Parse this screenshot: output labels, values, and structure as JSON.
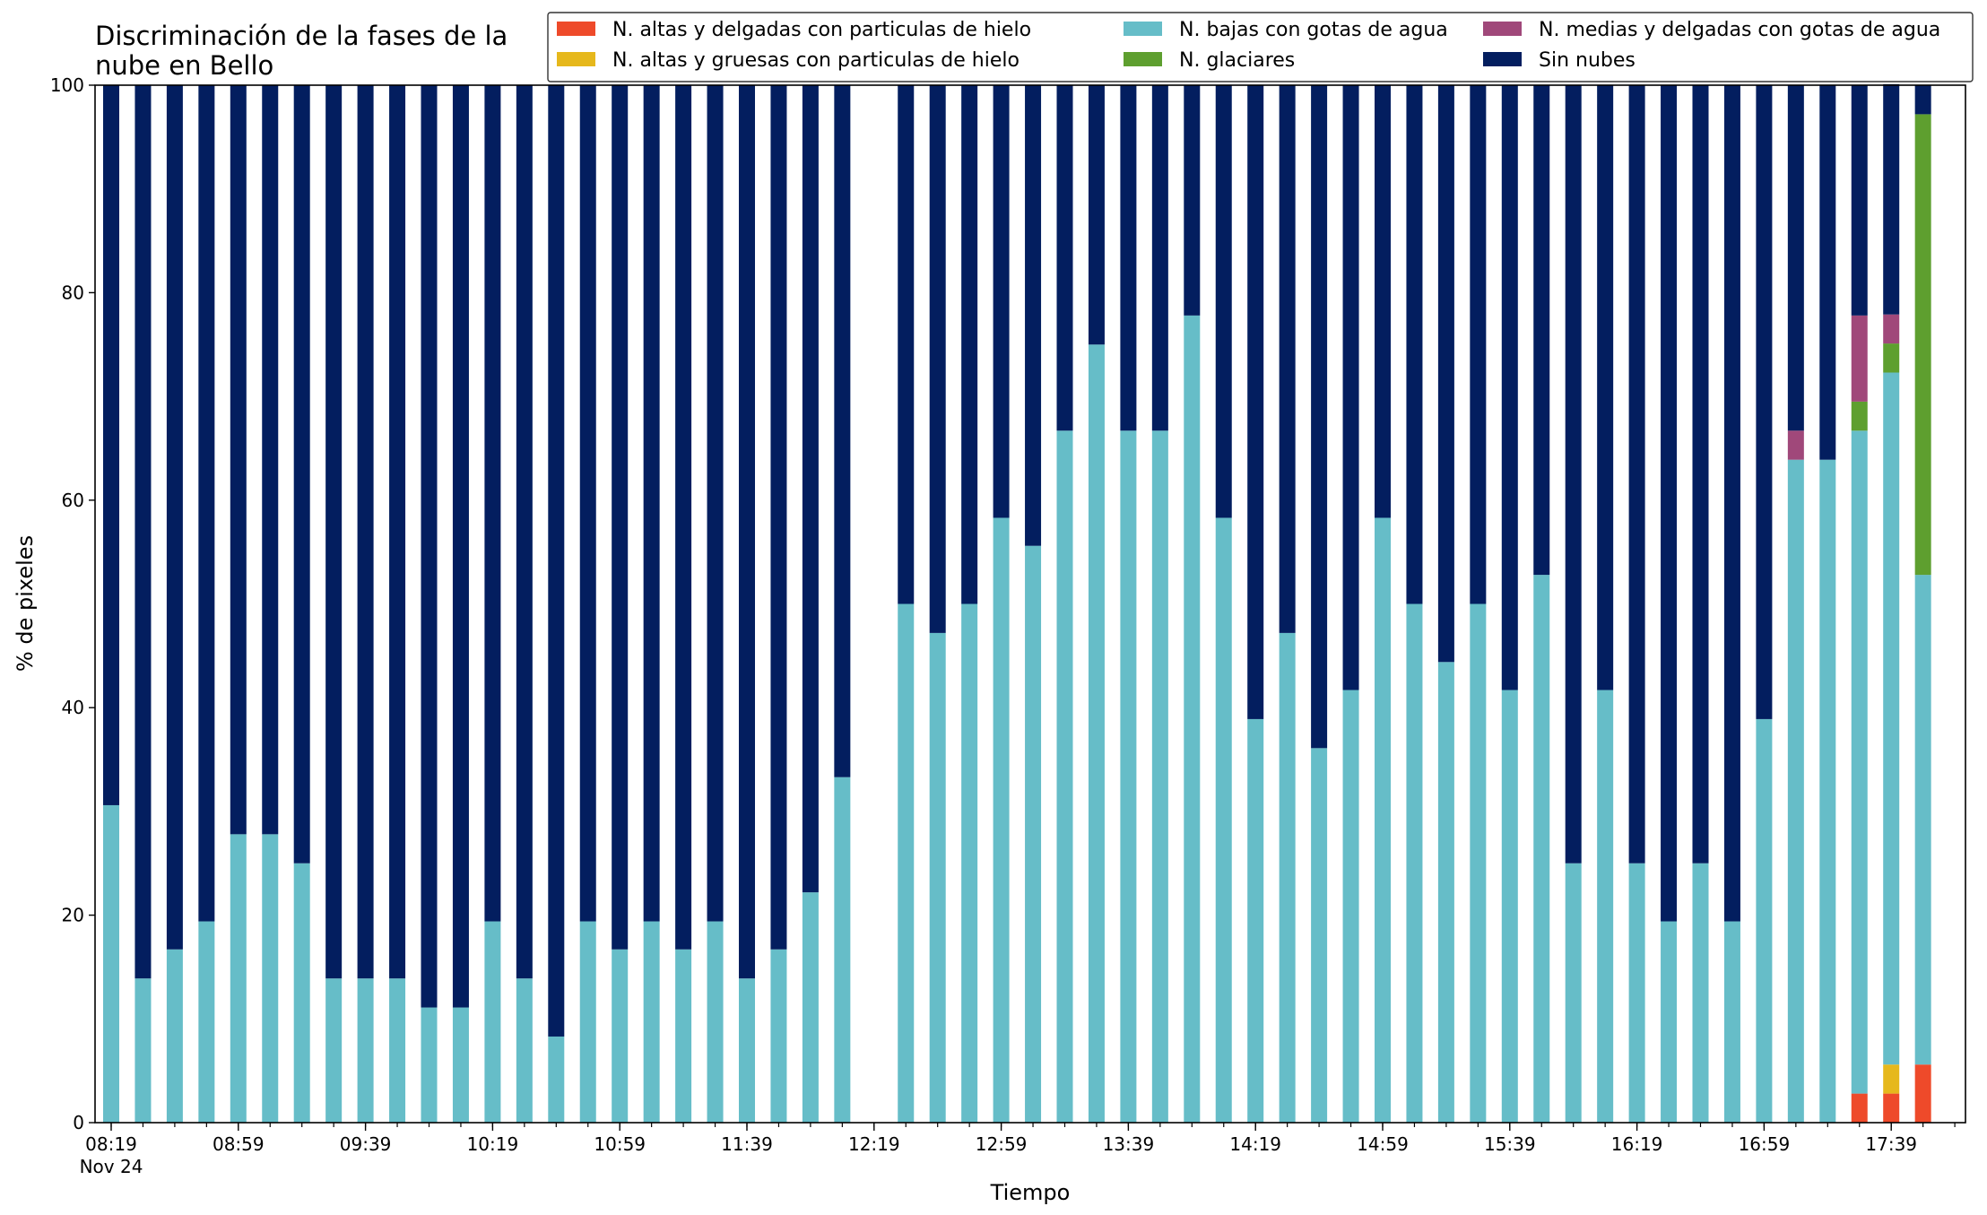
{
  "chart_data": {
    "type": "bar",
    "stacked": true,
    "title_lines": [
      "Discriminación de la fases de la",
      "nube en Bello"
    ],
    "xlabel": "Tiempo",
    "ylabel": "% de pixeles",
    "ylim": [
      0,
      100
    ],
    "yticks": [
      0,
      20,
      40,
      60,
      80,
      100
    ],
    "grid": false,
    "legend_position": "top-right",
    "x_start": "08:19",
    "x_end": "17:59",
    "x_step_minutes": 10,
    "xtick_labels": [
      "08:19",
      "08:59",
      "09:39",
      "10:19",
      "10:59",
      "11:39",
      "12:19",
      "12:59",
      "13:39",
      "14:19",
      "14:59",
      "15:39",
      "16:19",
      "16:59",
      "17:39"
    ],
    "x_date_label": "Nov 24",
    "x": [
      "08:19",
      "08:29",
      "08:39",
      "08:49",
      "08:59",
      "09:09",
      "09:19",
      "09:29",
      "09:39",
      "09:49",
      "09:59",
      "10:09",
      "10:19",
      "10:29",
      "10:39",
      "10:49",
      "10:59",
      "11:09",
      "11:19",
      "11:29",
      "11:39",
      "11:49",
      "11:59",
      "12:09",
      "12:19",
      "12:29",
      "12:39",
      "12:49",
      "12:59",
      "13:09",
      "13:19",
      "13:29",
      "13:39",
      "13:49",
      "13:59",
      "14:09",
      "14:19",
      "14:29",
      "14:39",
      "14:49",
      "14:59",
      "15:09",
      "15:19",
      "15:29",
      "15:39",
      "15:49",
      "15:59",
      "16:09",
      "16:19",
      "16:29",
      "16:39",
      "16:49",
      "16:59",
      "17:09",
      "17:19",
      "17:29",
      "17:39",
      "17:49",
      "17:59"
    ],
    "series": [
      {
        "name": "N. altas y delgadas con particulas de hielo",
        "color": "#ee4a2a",
        "values": [
          0,
          0,
          0,
          0,
          0,
          0,
          0,
          0,
          0,
          0,
          0,
          0,
          0,
          0,
          0,
          0,
          0,
          0,
          0,
          0,
          0,
          0,
          0,
          0,
          null,
          0,
          0,
          0,
          0,
          0,
          0,
          0,
          0,
          0,
          0,
          0,
          0,
          0,
          0,
          0,
          0,
          0,
          0,
          0,
          0,
          0,
          0,
          0,
          0,
          0,
          0,
          0,
          0,
          0,
          0,
          2.8,
          2.8,
          5.6,
          0
        ]
      },
      {
        "name": "N. altas y gruesas con particulas de hielo",
        "color": "#e6b81c",
        "values": [
          0,
          0,
          0,
          0,
          0,
          0,
          0,
          0,
          0,
          0,
          0,
          0,
          0,
          0,
          0,
          0,
          0,
          0,
          0,
          0,
          0,
          0,
          0,
          0,
          null,
          0,
          0,
          0,
          0,
          0,
          0,
          0,
          0,
          0,
          0,
          0,
          0,
          0,
          0,
          0,
          0,
          0,
          0,
          0,
          0,
          0,
          0,
          0,
          0,
          0,
          0,
          0,
          0,
          0,
          0,
          0,
          2.8,
          0,
          0
        ]
      },
      {
        "name": "N. bajas con gotas de agua",
        "color": "#66bdc8",
        "values": [
          30.6,
          13.9,
          16.7,
          19.4,
          27.8,
          27.8,
          25.0,
          13.9,
          13.9,
          13.9,
          11.1,
          11.1,
          19.4,
          13.9,
          8.3,
          19.4,
          16.7,
          19.4,
          16.7,
          19.4,
          13.9,
          16.7,
          22.2,
          33.3,
          null,
          50.0,
          47.2,
          50.0,
          58.3,
          55.6,
          66.7,
          75.0,
          66.7,
          66.7,
          77.8,
          58.3,
          38.9,
          47.2,
          36.1,
          41.7,
          58.3,
          50.0,
          44.4,
          50.0,
          41.7,
          52.8,
          25.0,
          41.7,
          25.0,
          19.4,
          25.0,
          19.4,
          38.9,
          63.9,
          63.9,
          63.9,
          66.7,
          47.2,
          0
        ]
      },
      {
        "name": "N. glaciares",
        "color": "#5e9f2f",
        "values": [
          0,
          0,
          0,
          0,
          0,
          0,
          0,
          0,
          0,
          0,
          0,
          0,
          0,
          0,
          0,
          0,
          0,
          0,
          0,
          0,
          0,
          0,
          0,
          0,
          null,
          0,
          0,
          0,
          0,
          0,
          0,
          0,
          0,
          0,
          0,
          0,
          0,
          0,
          0,
          0,
          0,
          0,
          0,
          0,
          0,
          0,
          0,
          0,
          0,
          0,
          0,
          0,
          0,
          0,
          0,
          2.8,
          2.8,
          44.4,
          0
        ]
      },
      {
        "name": "N. medias y delgadas con gotas de agua",
        "color": "#a0487a",
        "values": [
          0,
          0,
          0,
          0,
          0,
          0,
          0,
          0,
          0,
          0,
          0,
          0,
          0,
          0,
          0,
          0,
          0,
          0,
          0,
          0,
          0,
          0,
          0,
          0,
          null,
          0,
          0,
          0,
          0,
          0,
          0,
          0,
          0,
          0,
          0,
          0,
          0,
          0,
          0,
          0,
          0,
          0,
          0,
          0,
          0,
          0,
          0,
          0,
          0,
          0,
          0,
          0,
          0,
          2.8,
          0,
          8.3,
          2.8,
          0,
          0
        ]
      },
      {
        "name": "Sin nubes",
        "color": "#031e5f",
        "values": [
          69.4,
          86.1,
          83.3,
          80.6,
          72.2,
          72.2,
          75.0,
          86.1,
          86.1,
          86.1,
          88.9,
          88.9,
          80.6,
          86.1,
          91.7,
          80.6,
          83.3,
          80.6,
          83.3,
          80.6,
          86.1,
          83.3,
          77.8,
          66.7,
          null,
          50.0,
          52.8,
          50.0,
          41.7,
          44.4,
          33.3,
          25.0,
          33.3,
          33.3,
          22.2,
          41.7,
          61.1,
          52.8,
          63.9,
          58.3,
          41.7,
          50.0,
          55.6,
          50.0,
          58.3,
          47.2,
          75.0,
          58.3,
          75.0,
          80.6,
          75.0,
          80.6,
          61.1,
          33.3,
          36.1,
          22.2,
          22.2,
          2.8,
          0
        ]
      }
    ]
  }
}
